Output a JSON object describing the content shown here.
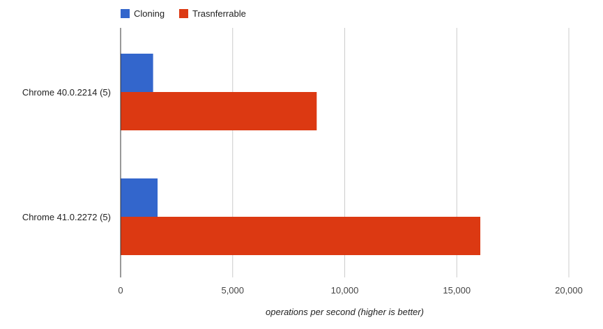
{
  "chart_data": {
    "type": "bar",
    "orientation": "horizontal",
    "categories": [
      "Chrome 40.0.2214 (5)",
      "Chrome 41.0.2272 (5)"
    ],
    "series": [
      {
        "name": "Cloning",
        "color": "#3366cc",
        "values": [
          1450,
          1650
        ]
      },
      {
        "name": "Trasnferrable",
        "color": "#dc3912",
        "values": [
          8750,
          16050
        ]
      }
    ],
    "xlabel": "operations per second (higher is better)",
    "ylabel": "",
    "xlim": [
      0,
      20000
    ],
    "xticks": [
      0,
      5000,
      10000,
      15000,
      20000
    ],
    "xtick_labels": [
      "0",
      "5,000",
      "10,000",
      "15,000",
      "20,000"
    ],
    "grid": true,
    "legend_position": "top-left"
  }
}
